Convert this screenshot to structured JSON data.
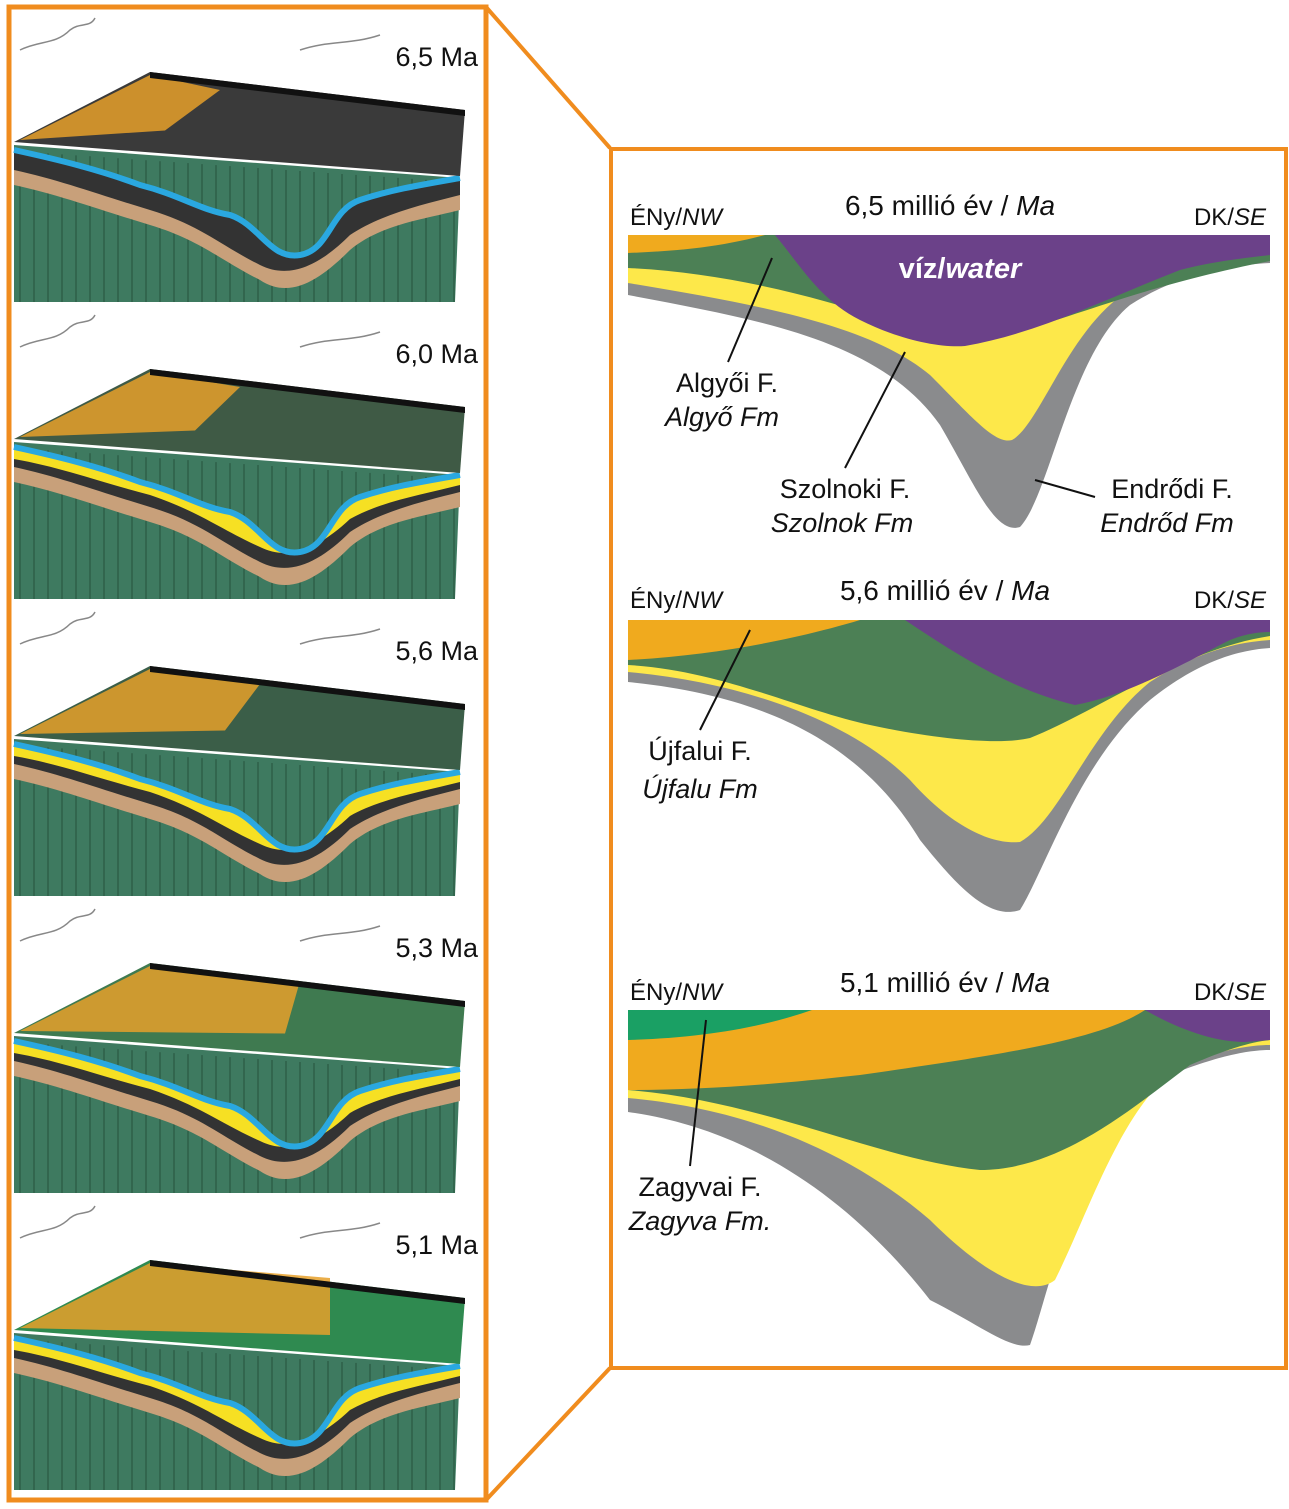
{
  "panels": [
    {
      "label": "6,5 Ma"
    },
    {
      "label": "6,0 Ma"
    },
    {
      "label": "5,6 Ma"
    },
    {
      "label": "5,3 Ma"
    },
    {
      "label": "5,1 Ma"
    }
  ],
  "sections": [
    {
      "title": "6,5 millió év / ",
      "title_emphasis": "Ma",
      "left": "ÉNy/",
      "left_emphasis": "NW",
      "right": "DK/",
      "right_emphasis": "SE",
      "water": "víz/",
      "water_emphasis": "water",
      "formations": [
        {
          "name": "Algyői F.",
          "name_en": "Algyő Fm"
        },
        {
          "name": "Szolnoki F.",
          "name_en": "Szolnok Fm"
        },
        {
          "name": "Endrődi F.",
          "name_en": "Endrőd Fm"
        }
      ]
    },
    {
      "title": "5,6 millió év / ",
      "title_emphasis": "Ma",
      "left": "ÉNy/",
      "left_emphasis": "NW",
      "right": "DK/",
      "right_emphasis": "SE",
      "formations": [
        {
          "name": "Újfalui F.",
          "name_en": "Újfalu Fm"
        }
      ]
    },
    {
      "title": "5,1 millió év / ",
      "title_emphasis": "Ma",
      "left": "ÉNy/",
      "left_emphasis": "NW",
      "right": "DK/",
      "right_emphasis": "SE",
      "formations": [
        {
          "name": "Zagyvai F.",
          "name_en": "Zagyva Fm."
        }
      ]
    }
  ]
}
